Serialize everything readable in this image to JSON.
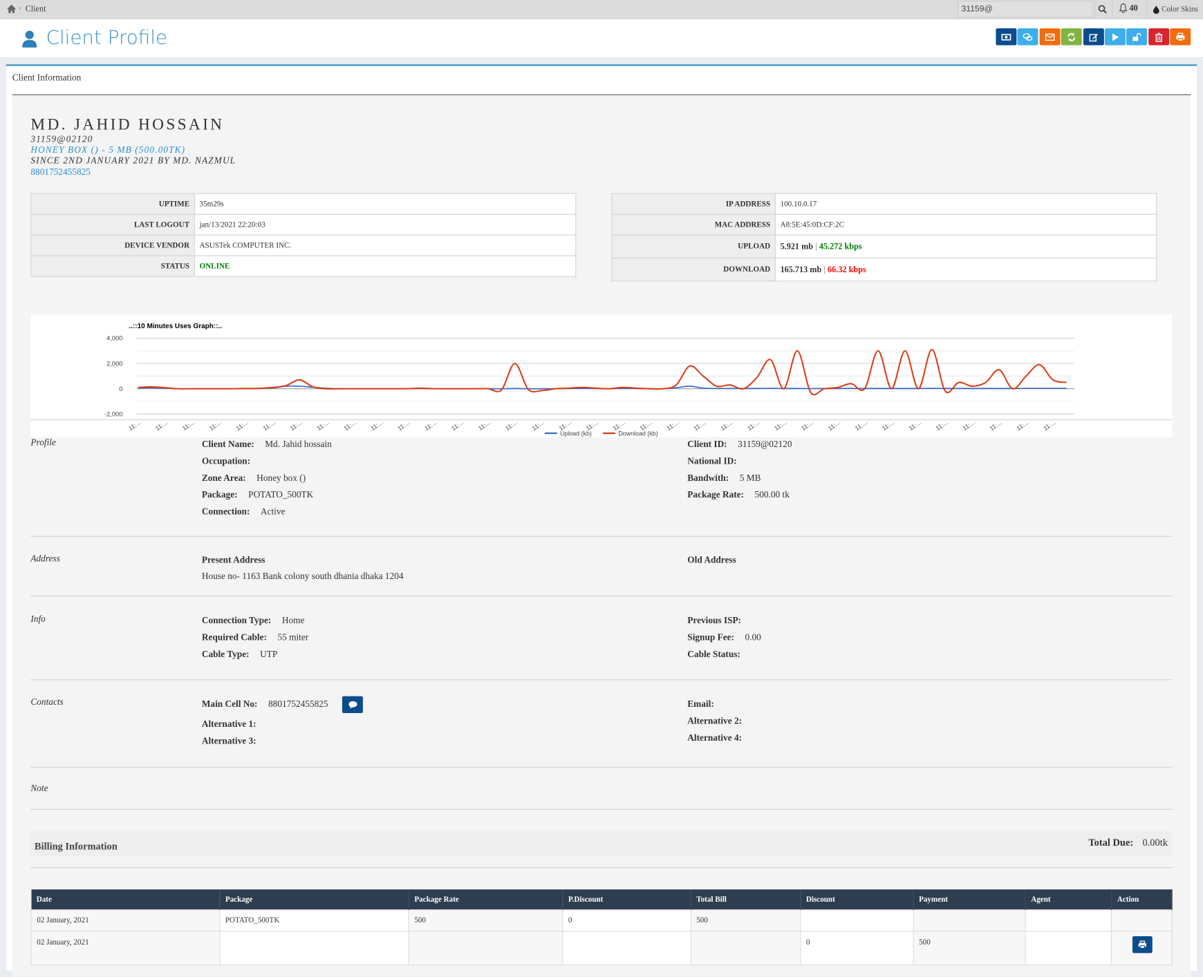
{
  "topbar": {
    "breadcrumb": "Client",
    "search_value": "31159@",
    "notifications": "40",
    "color_skins": "Color Skins",
    "icons": [
      "home-icon",
      "search-icon",
      "bell-icon",
      "droplet-icon"
    ]
  },
  "header": {
    "title": "Client Profile",
    "buttons": [
      {
        "name": "payment-button",
        "icon": "money-icon",
        "color": "#0b4c8c"
      },
      {
        "name": "message-button",
        "icon": "comments-icon",
        "color": "#3daee9"
      },
      {
        "name": "email-button",
        "icon": "envelope-icon",
        "color": "#f26c0d"
      },
      {
        "name": "refresh-button",
        "icon": "refresh-icon",
        "color": "#80b541"
      },
      {
        "name": "edit-button",
        "icon": "edit-icon",
        "color": "#0b4c8c"
      },
      {
        "name": "play-button",
        "icon": "play-icon",
        "color": "#3daee9"
      },
      {
        "name": "unlock-button",
        "icon": "unlock-icon",
        "color": "#3daee9"
      },
      {
        "name": "delete-button",
        "icon": "trash-icon",
        "color": "#d9232e"
      },
      {
        "name": "print-button",
        "icon": "print-icon",
        "color": "#f26c0d"
      }
    ]
  },
  "card": {
    "title": "Client Information"
  },
  "client": {
    "name": "MD. JAHID HOSSAIN",
    "id": "31159@02120",
    "package_line": "HONEY BOX () - 5 MB (500.00TK)",
    "since": "SINCE 2ND JANUARY 2021 BY MD. NAZMUL",
    "phone": "8801752455825"
  },
  "session_left": [
    {
      "k": "UPTIME",
      "v": "35m29s"
    },
    {
      "k": "LAST LOGOUT",
      "v": "jan/13/2021 22:20:03"
    },
    {
      "k": "DEVICE VENDOR",
      "v": "ASUSTek COMPUTER INC."
    },
    {
      "k": "STATUS",
      "v": "ONLINE"
    }
  ],
  "session_right": {
    "ip_label": "IP ADDRESS",
    "ip": "100.10.0.17",
    "mac_label": "MAC ADDRESS",
    "mac": "A8:5E:45:0D:CF:2C",
    "upload_label": "UPLOAD",
    "upload_total": "5.921 mb",
    "upload_rate": "45.272 kbps",
    "download_label": "DOWNLOAD",
    "download_total": "165.713 mb",
    "download_rate": "66.32 kbps",
    "sep": "|"
  },
  "colors": {
    "online": "#008000",
    "upload_rate": "#008000",
    "download_rate": "#ff0000",
    "accent": "#3a8fc7",
    "table_header": "#2e3e50"
  },
  "chart_data": {
    "type": "line",
    "title": "..::10 Minutes Uses Graph::..",
    "ylim": [
      -2000,
      4000
    ],
    "y_ticks": [
      "4,000",
      "2,000",
      "0",
      "-2,000"
    ],
    "grid": true,
    "legend": "bottom",
    "x_tick_labels": [
      "11:...",
      "11:...",
      "11:...",
      "11:...",
      "11:...",
      "11:...",
      "11:...",
      "11:...",
      "11:...",
      "11:...",
      "11:...",
      "11:...",
      "11:...",
      "11:...",
      "11:...",
      "11:...",
      "11:...",
      "11:...",
      "11:...",
      "11:...",
      "11:...",
      "11:...",
      "11:...",
      "11:...",
      "11:...",
      "11:...",
      "11:...",
      "11:...",
      "11:...",
      "11:...",
      "11:...",
      "11:...",
      "11:...",
      "11:...",
      "11:..."
    ],
    "series": [
      {
        "name": "Upload (kb)",
        "color": "#3366cc",
        "values": [
          50,
          80,
          40,
          0,
          0,
          0,
          0,
          0,
          10,
          20,
          60,
          200,
          200,
          120,
          40,
          0,
          0,
          0,
          0,
          0,
          0,
          20,
          0,
          0,
          0,
          0,
          0,
          0,
          20,
          0,
          0,
          0,
          20,
          30,
          20,
          0,
          30,
          20,
          0,
          0,
          80,
          200,
          50,
          20,
          20,
          20,
          20,
          30,
          20,
          20,
          10,
          20,
          20,
          30,
          20,
          20,
          20,
          20,
          20,
          30,
          20,
          20,
          20,
          20,
          20,
          20,
          30,
          30,
          30,
          30
        ]
      },
      {
        "name": "Download (kb)",
        "color": "#dc3912",
        "values": [
          100,
          150,
          80,
          0,
          0,
          0,
          0,
          0,
          20,
          30,
          100,
          250,
          700,
          150,
          0,
          0,
          0,
          0,
          0,
          0,
          0,
          50,
          0,
          0,
          0,
          0,
          0,
          -100,
          2000,
          -50,
          -150,
          0,
          50,
          100,
          50,
          0,
          100,
          50,
          0,
          0,
          300,
          1800,
          1000,
          200,
          300,
          0,
          900,
          2300,
          0,
          3000,
          -300,
          0,
          100,
          400,
          0,
          3000,
          0,
          3000,
          0,
          3100,
          -200,
          500,
          200,
          500,
          1500,
          0,
          1000,
          1900,
          700,
          500
        ]
      }
    ]
  },
  "profile": {
    "section": "Profile",
    "left": [
      {
        "k": "Client Name:",
        "v": "Md. Jahid hossain"
      },
      {
        "k": "Occupation:",
        "v": ""
      },
      {
        "k": "Zone Area:",
        "v": "Honey box ()"
      },
      {
        "k": "Package:",
        "v": "POTATO_500TK"
      },
      {
        "k": "Connection:",
        "v": "Active"
      }
    ],
    "right": [
      {
        "k": "Client ID:",
        "v": "31159@02120"
      },
      {
        "k": "National ID:",
        "v": ""
      },
      {
        "k": "Bandwith:",
        "v": "5 MB"
      },
      {
        "k": "Package Rate:",
        "v": "500.00 tk"
      }
    ]
  },
  "address": {
    "section": "Address",
    "present_label": "Present Address",
    "present": "House no- 1163 Bank colony south dhania dhaka 1204",
    "old_label": "Old Address"
  },
  "info": {
    "section": "Info",
    "left": [
      {
        "k": "Connection Type:",
        "v": "Home"
      },
      {
        "k": "Required Cable:",
        "v": "55 miter"
      },
      {
        "k": "Cable Type:",
        "v": "UTP"
      }
    ],
    "right": [
      {
        "k": "Previous ISP:",
        "v": ""
      },
      {
        "k": "Signup Fee:",
        "v": "0.00"
      },
      {
        "k": "Cable Status:",
        "v": ""
      }
    ]
  },
  "contacts": {
    "section": "Contacts",
    "main_label": "Main Cell No:",
    "main": "8801752455825",
    "left": [
      {
        "k": "Alternative 1:"
      },
      {
        "k": "Alternative 3:"
      }
    ],
    "right": [
      {
        "k": "Email:"
      },
      {
        "k": "Alternative 2:"
      },
      {
        "k": "Alternative 4:"
      }
    ]
  },
  "note": {
    "section": "Note"
  },
  "billing": {
    "title": "Billing Information",
    "total_due_label": "Total Due:",
    "total_due": "0.00tk",
    "columns": [
      "Date",
      "Package",
      "Package Rate",
      "P.Discount",
      "Total Bill",
      "Discount",
      "Payment",
      "Agent",
      "Action"
    ],
    "rows": [
      [
        "02 January, 2021",
        "POTATO_500TK",
        "500",
        "0",
        "500",
        "",
        "",
        "",
        ""
      ],
      [
        "02 January, 2021",
        "",
        "",
        "",
        "",
        "0",
        "500",
        "",
        ""
      ]
    ]
  }
}
